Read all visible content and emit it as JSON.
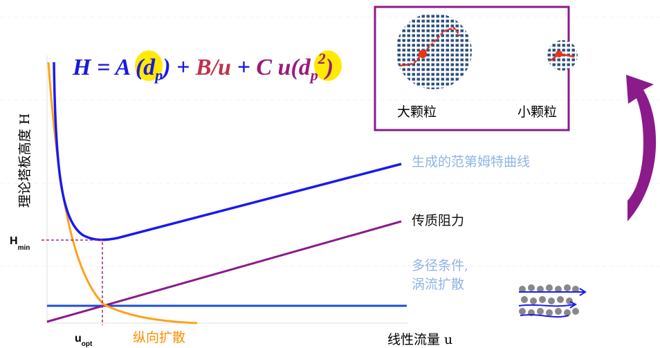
{
  "formula": {
    "h_a": "H = A (d",
    "sub1": "p",
    ")": ")",
    "plus1": " + ",
    "b_term": "B/u",
    "plus2": " + ",
    "c_term": "C u(d",
    "sub2": "p",
    "sup2": "2",
    "close": ")"
  },
  "inset": {
    "large": "大颗粒",
    "small": "小颗粒"
  },
  "labels": {
    "curve": "生成的范第姆特曲线",
    "mass_transfer": "传质阻力",
    "multipath_1": "多径条件,",
    "multipath_2": "涡流扩散",
    "longitudinal": "纵向扩散",
    "x_axis": "线性流量 u",
    "y_axis": "理论塔板高度 H",
    "h": "H",
    "h_sub": "min",
    "u": "u",
    "u_sub": "opt"
  }
}
